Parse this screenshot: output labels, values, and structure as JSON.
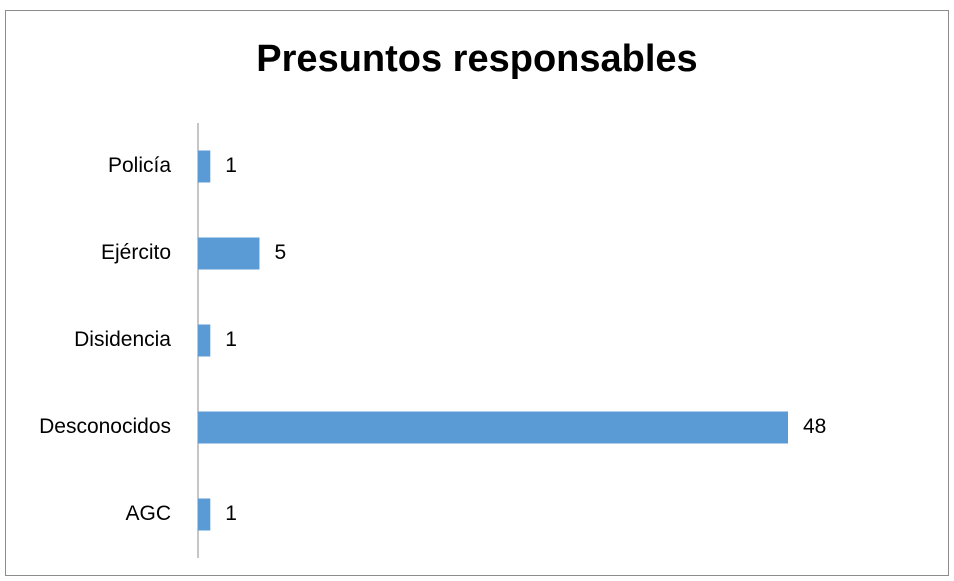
{
  "chart_data": {
    "type": "bar",
    "orientation": "horizontal",
    "title": "Presuntos responsables",
    "categories": [
      "Policía",
      "Ejército",
      "Disidencia",
      "Desconocidos",
      "AGC"
    ],
    "values": [
      1,
      5,
      1,
      48,
      1
    ],
    "data_labels": true,
    "legend": "none",
    "grid": false,
    "bar_color": "#5b9bd5"
  }
}
